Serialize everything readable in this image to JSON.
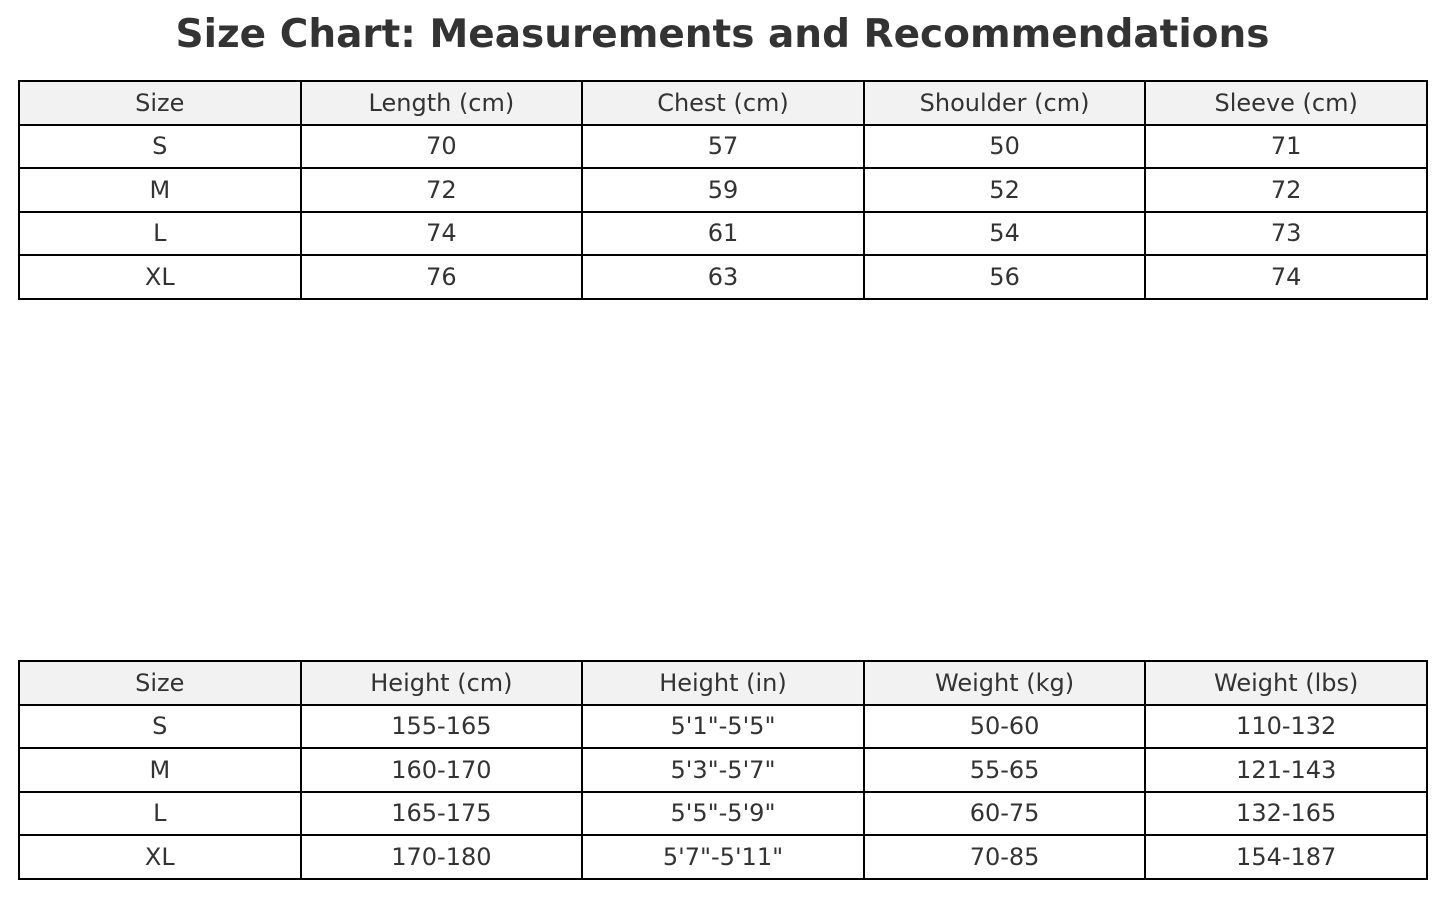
{
  "chart_data": [
    {
      "type": "table",
      "title": "Size Chart: Measurements and Recommendations",
      "columns": [
        "Size",
        "Length (cm)",
        "Chest (cm)",
        "Shoulder (cm)",
        "Sleeve (cm)"
      ],
      "rows": [
        [
          "S",
          "70",
          "57",
          "50",
          "71"
        ],
        [
          "M",
          "72",
          "59",
          "52",
          "72"
        ],
        [
          "L",
          "74",
          "61",
          "54",
          "73"
        ],
        [
          "XL",
          "76",
          "63",
          "56",
          "74"
        ]
      ],
      "header_color": "#f2f2f2"
    },
    {
      "type": "table",
      "columns": [
        "Size",
        "Height (cm)",
        "Height (in)",
        "Weight (kg)",
        "Weight (lbs)"
      ],
      "rows": [
        [
          "S",
          "155-165",
          "5'1\"-5'5\"",
          "50-60",
          "110-132"
        ],
        [
          "M",
          "160-170",
          "5'3\"-5'7\"",
          "55-65",
          "121-143"
        ],
        [
          "L",
          "165-175",
          "5'5\"-5'9\"",
          "60-75",
          "132-165"
        ],
        [
          "XL",
          "170-180",
          "5'7\"-5'11\"",
          "70-85",
          "154-187"
        ]
      ],
      "header_color": "#f2f2f2"
    }
  ]
}
